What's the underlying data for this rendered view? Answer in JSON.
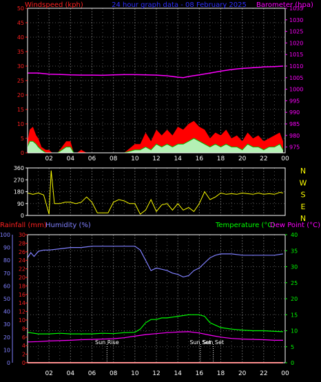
{
  "colors": {
    "background": "#000000",
    "frame": "#ffffff",
    "grid": "#5a5a5a",
    "wind_axis": "#ff2020",
    "baro_axis": "#ff00ff",
    "title": "#2f2fff",
    "dir_line": "#ffff00",
    "nsew": "#ffff00",
    "humidity": "#8080ff",
    "temperature": "#00ff00",
    "dewpoint": "#ff00ff",
    "rain": "#ff2020",
    "gust_fill": "#ff0000",
    "avg_fill": "#b4f0b4",
    "avg_line": "#00c000"
  },
  "chart_data": [
    {
      "type": "area",
      "title": "24 hour graph data - 08 February 2025",
      "ylabel_left": "Windspeed (kph)",
      "ylabel_right": "Barometer (hpa)",
      "x_ticks": [
        "02",
        "04",
        "06",
        "08",
        "10",
        "12",
        "14",
        "16",
        "18",
        "20",
        "22",
        "00"
      ],
      "y_left_ticks": [
        "0",
        "5",
        "10",
        "15",
        "20",
        "25",
        "30",
        "35",
        "40",
        "45",
        "50"
      ],
      "y_left_lim": [
        0,
        50
      ],
      "y_right_ticks": [
        "975",
        "980",
        "985",
        "990",
        "995",
        "1000",
        "1005",
        "1010",
        "1015",
        "1020",
        "1025",
        "1030",
        "1035"
      ],
      "y_right_lim": [
        972.5,
        1035
      ],
      "x_range_hours": [
        0,
        24
      ],
      "grid": true,
      "series": [
        {
          "name": "Barometer (hpa)",
          "x": [
            0.0,
            1.0,
            2.0,
            3.0,
            4.0,
            5.0,
            6.0,
            7.0,
            8.0,
            9.0,
            10.0,
            11.0,
            12.0,
            13.0,
            14.0,
            14.5,
            15.0,
            16.0,
            17.0,
            18.0,
            19.0,
            20.0,
            21.0,
            22.0,
            23.0,
            23.8
          ],
          "values": [
            1007.0,
            1007.0,
            1006.5,
            1006.4,
            1006.2,
            1006.1,
            1006.1,
            1006.0,
            1006.2,
            1006.3,
            1006.3,
            1006.2,
            1006.1,
            1005.8,
            1005.2,
            1005.0,
            1005.5,
            1006.2,
            1007.0,
            1007.8,
            1008.5,
            1009.0,
            1009.3,
            1009.6,
            1009.8,
            1010.0
          ]
        },
        {
          "name": "Wind gust",
          "x": [
            0.0,
            0.2,
            0.5,
            0.8,
            1.0,
            1.3,
            1.7,
            2.0,
            2.3,
            2.8,
            3.2,
            3.6,
            4.0,
            4.3,
            4.6,
            5.0,
            5.5,
            6.0,
            7.0,
            8.0,
            9.0,
            10.0,
            10.5,
            11.0,
            11.5,
            12.0,
            12.5,
            13.0,
            13.5,
            14.0,
            14.5,
            15.0,
            15.5,
            16.0,
            16.5,
            17.0,
            17.5,
            18.0,
            18.5,
            19.0,
            19.5,
            20.0,
            20.5,
            21.0,
            21.5,
            22.0,
            22.5,
            23.0,
            23.5,
            23.8
          ],
          "values": [
            4,
            8,
            9,
            6,
            5,
            2,
            1,
            1,
            0,
            0,
            2,
            4,
            4,
            0,
            0,
            1,
            0,
            0,
            0,
            0,
            0,
            3,
            3,
            7,
            4,
            8,
            6,
            8,
            6,
            9,
            8,
            10,
            11,
            9,
            8,
            5,
            7,
            6,
            8,
            5,
            6,
            4,
            7,
            5,
            6,
            4,
            5,
            6,
            7,
            4
          ]
        },
        {
          "name": "Wind average",
          "x": [
            0.0,
            0.2,
            0.5,
            0.8,
            1.0,
            1.3,
            1.7,
            2.0,
            2.3,
            2.8,
            3.2,
            3.6,
            4.0,
            4.3,
            4.6,
            5.0,
            5.5,
            6.0,
            7.0,
            8.0,
            9.0,
            10.0,
            10.5,
            11.0,
            11.5,
            12.0,
            12.5,
            13.0,
            13.5,
            14.0,
            14.5,
            15.0,
            15.5,
            16.0,
            16.5,
            17.0,
            17.5,
            18.0,
            18.5,
            19.0,
            19.5,
            20.0,
            20.5,
            21.0,
            21.5,
            22.0,
            22.5,
            23.0,
            23.5,
            23.8
          ],
          "values": [
            2,
            4,
            4,
            3,
            2,
            1,
            0,
            0,
            0,
            0,
            1,
            2,
            2,
            0,
            0,
            0,
            0,
            0,
            0,
            0,
            0,
            1,
            1,
            2,
            1,
            3,
            2,
            3,
            2,
            3,
            3,
            4,
            5,
            4,
            3,
            2,
            3,
            2,
            3,
            2,
            2,
            1,
            3,
            2,
            2,
            1,
            2,
            2,
            3,
            1
          ]
        }
      ]
    },
    {
      "type": "line",
      "title": "",
      "ylabel_right": "N W S E N",
      "y_left_ticks": [
        "0",
        "90",
        "180",
        "270",
        "360"
      ],
      "y_lim": [
        0,
        360
      ],
      "x_range_hours": [
        0,
        24
      ],
      "grid": true,
      "series": [
        {
          "name": "Wind direction",
          "x": [
            0.0,
            0.5,
            1.0,
            1.5,
            2.0,
            2.2,
            2.5,
            3.0,
            3.5,
            4.0,
            4.5,
            5.0,
            5.5,
            6.0,
            6.5,
            7.0,
            7.5,
            8.0,
            8.5,
            9.0,
            9.5,
            10.0,
            10.5,
            11.0,
            11.5,
            12.0,
            12.5,
            13.0,
            13.5,
            14.0,
            14.5,
            15.0,
            15.5,
            16.0,
            16.5,
            17.0,
            17.5,
            18.0,
            18.5,
            19.0,
            19.5,
            20.0,
            20.5,
            21.0,
            21.5,
            22.0,
            22.5,
            23.0,
            23.5,
            23.8
          ],
          "values": [
            170,
            160,
            170,
            155,
            10,
            340,
            90,
            90,
            100,
            100,
            90,
            100,
            140,
            100,
            20,
            20,
            20,
            100,
            120,
            110,
            90,
            90,
            10,
            40,
            120,
            30,
            80,
            90,
            40,
            90,
            40,
            60,
            30,
            90,
            180,
            120,
            140,
            170,
            160,
            165,
            160,
            170,
            165,
            160,
            170,
            160,
            165,
            160,
            175,
            170
          ]
        }
      ]
    },
    {
      "type": "line",
      "title": "",
      "ylabel_left": "Rainfall (mm)",
      "ylabel_left2": "Humidity (%)",
      "ylabel_right": "Temperature (°C)",
      "ylabel_right2": "Dew Point (°C)",
      "x_ticks": [
        "02",
        "04",
        "06",
        "08",
        "10",
        "12",
        "14",
        "16",
        "18",
        "20",
        "22",
        "00"
      ],
      "y_rain_ticks": [
        "0",
        "2",
        "4",
        "6",
        "8",
        "10",
        "12",
        "14",
        "16",
        "18",
        "20",
        "22",
        "24",
        "26",
        "28",
        "30"
      ],
      "y_hum_ticks": [
        "0",
        "10",
        "20",
        "30",
        "40",
        "50",
        "60",
        "70",
        "80",
        "90",
        "100"
      ],
      "y_temp_ticks": [
        "0",
        "5",
        "10",
        "15",
        "20",
        "25",
        "30",
        "35",
        "40"
      ],
      "y_temp_lim": [
        0,
        40
      ],
      "y_hum_lim": [
        0,
        100
      ],
      "x_range_hours": [
        0,
        24
      ],
      "grid": true,
      "annotations": [
        {
          "label": "Sun Rise",
          "x": 7.4
        },
        {
          "label": "Sun Set",
          "x": 16.1
        },
        {
          "label": "Sun Set",
          "x": 17.3
        }
      ],
      "series": [
        {
          "name": "Humidity (%)",
          "x": [
            0.0,
            0.3,
            0.6,
            1.0,
            1.5,
            2.0,
            3.0,
            4.0,
            5.0,
            6.0,
            7.0,
            8.0,
            9.0,
            10.0,
            10.5,
            11.0,
            11.5,
            12.0,
            12.5,
            13.0,
            13.5,
            14.0,
            14.5,
            15.0,
            15.5,
            16.0,
            16.5,
            17.0,
            17.5,
            18.0,
            19.0,
            20.0,
            21.0,
            22.0,
            23.0,
            23.8
          ],
          "values": [
            82,
            86,
            83,
            87,
            88,
            88,
            89,
            90,
            90,
            91,
            91,
            91,
            91,
            91,
            88,
            80,
            72,
            74,
            73,
            72,
            70,
            69,
            67,
            68,
            72,
            74,
            78,
            82,
            84,
            85,
            85,
            84,
            84,
            84,
            84,
            85
          ]
        },
        {
          "name": "Temperature (°C)",
          "x": [
            0.0,
            1.0,
            2.0,
            3.0,
            4.0,
            5.0,
            6.0,
            7.0,
            8.0,
            9.0,
            10.0,
            10.5,
            11.0,
            11.5,
            12.0,
            12.5,
            13.0,
            14.0,
            15.0,
            16.0,
            16.5,
            17.0,
            18.0,
            19.0,
            20.0,
            21.0,
            22.0,
            23.0,
            23.8
          ],
          "values": [
            9.5,
            9.0,
            9.0,
            9.2,
            9.0,
            9.0,
            9.0,
            9.2,
            9.1,
            9.4,
            9.5,
            10.5,
            12.5,
            13.5,
            13.5,
            14.0,
            14.0,
            14.5,
            15.0,
            15.0,
            14.5,
            12.5,
            11.0,
            10.5,
            10.2,
            10.0,
            10.0,
            9.8,
            9.7
          ]
        },
        {
          "name": "Dew Point (°C)",
          "x": [
            0.0,
            1.0,
            2.0,
            3.0,
            4.0,
            5.0,
            6.0,
            7.0,
            8.0,
            9.0,
            10.0,
            11.0,
            12.0,
            13.0,
            14.0,
            15.0,
            16.0,
            17.0,
            18.0,
            19.0,
            20.0,
            21.0,
            22.0,
            23.0,
            23.8
          ],
          "values": [
            6.5,
            6.6,
            6.8,
            6.9,
            7.0,
            7.2,
            7.3,
            7.4,
            7.5,
            7.8,
            8.3,
            8.8,
            9.1,
            9.4,
            9.6,
            9.7,
            9.3,
            8.6,
            8.0,
            7.6,
            7.4,
            7.3,
            7.2,
            7.0,
            7.0
          ]
        },
        {
          "name": "Rainfall (mm)",
          "x": [
            0.0,
            23.8
          ],
          "values": [
            0,
            0
          ]
        }
      ]
    }
  ]
}
